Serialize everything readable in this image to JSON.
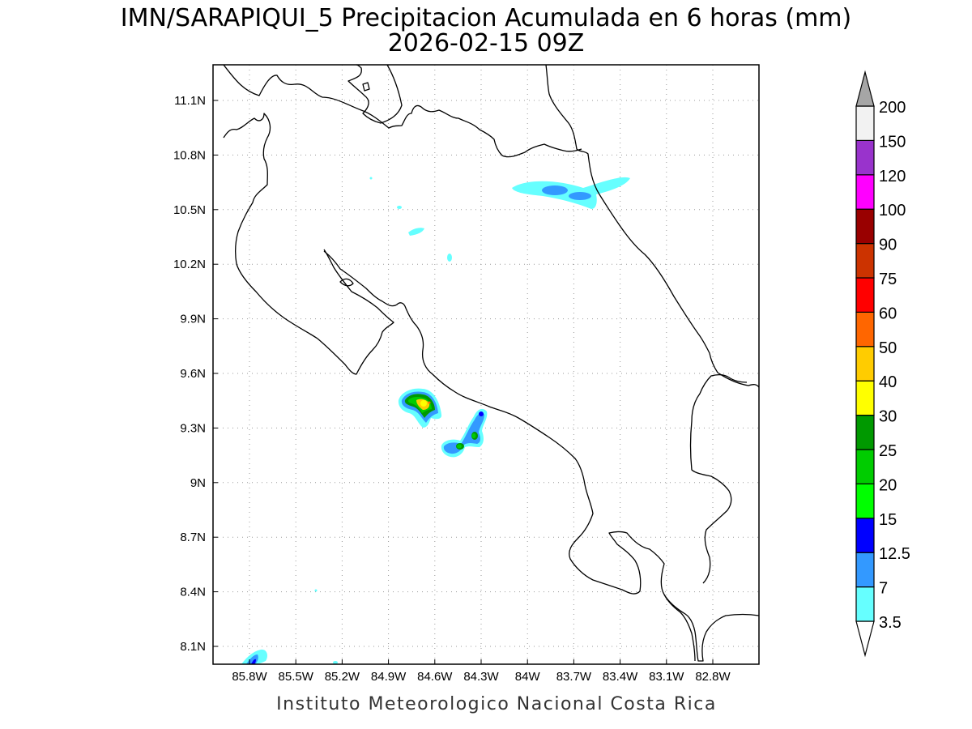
{
  "title": {
    "line1": "IMN/SARAPIQUI_5 Precipitacion Acumulada en 6 horas (mm)",
    "line2": "2026-02-15 09Z"
  },
  "footer": "Instituto Meteorologico Nacional Costa Rica",
  "map": {
    "lon_range": [
      -86.12,
      -82.33
    ],
    "lat_range": [
      8.0,
      11.27
    ],
    "x_ticks": [
      "85.8W",
      "85.5W",
      "85.2W",
      "84.9W",
      "84.6W",
      "84.3W",
      "84W",
      "83.7W",
      "83.4W",
      "83.1W",
      "82.8W"
    ],
    "y_ticks": [
      "11.1N",
      "10.8N",
      "10.5N",
      "10.2N",
      "9.9N",
      "9.6N",
      "9.3N",
      "9N",
      "8.7N",
      "8.4N",
      "8.1N"
    ],
    "grid": "dotted"
  },
  "colorbar": {
    "levels": [
      "3.5",
      "7",
      "12.5",
      "15",
      "20",
      "25",
      "30",
      "40",
      "50",
      "60",
      "75",
      "90",
      "100",
      "120",
      "150",
      "200"
    ],
    "colors": [
      "#66ffff",
      "#3399ff",
      "#0000ff",
      "#00ff00",
      "#00cc00",
      "#009900",
      "#ffff00",
      "#ffcc00",
      "#ff6600",
      "#ff0000",
      "#cc3300",
      "#990000",
      "#ff00ff",
      "#9933cc",
      "#f2f2f2"
    ],
    "extend_high_color": "#a6a6a6",
    "extend_low_color": "#ffffff"
  }
}
